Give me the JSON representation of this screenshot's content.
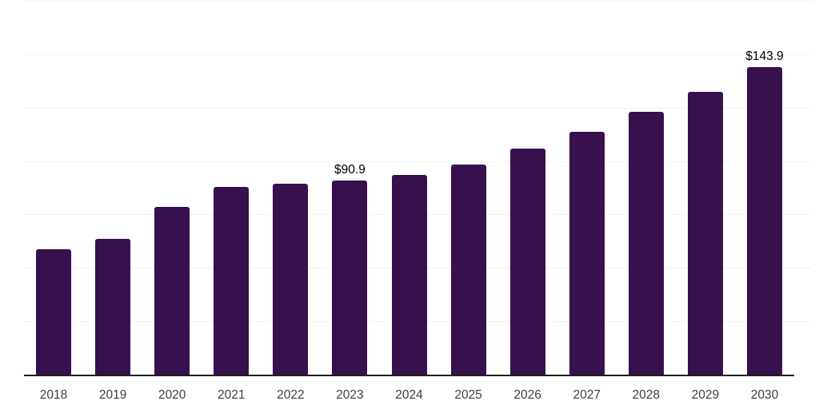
{
  "chart_data": {
    "type": "bar",
    "title": "",
    "subtitle": "",
    "xlabel": "",
    "ylabel": "",
    "categories": [
      "2018",
      "2019",
      "2020",
      "2021",
      "2022",
      "2023",
      "2024",
      "2025",
      "2026",
      "2027",
      "2028",
      "2029",
      "2030"
    ],
    "values": [
      58.8,
      63.4,
      78.6,
      88.0,
      89.4,
      90.9,
      93.6,
      98.5,
      106.0,
      113.7,
      123.0,
      132.3,
      143.9
    ],
    "data_labels": [
      "",
      "",
      "",
      "",
      "",
      "$90.9",
      "",
      "",
      "",
      "",
      "",
      "",
      "$143.9"
    ],
    "ylim": [
      0,
      175
    ],
    "grid_step": 25,
    "grid": true,
    "legend": false,
    "y_axis_tick_labels_visible": false
  },
  "colors": {
    "bar": "#37104E",
    "axis": "#1F1F1F",
    "gridline": "#F2F2F2",
    "category_label": "#3D3D3D",
    "data_label": "#000000",
    "background": "#FFFFFF"
  }
}
